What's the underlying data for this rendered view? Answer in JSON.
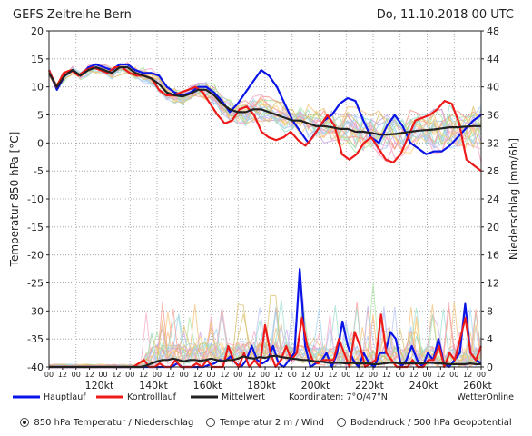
{
  "header": {
    "title": "GEFS Zeitreihe Bern",
    "date": "Do, 11.10.2018 00 UTC"
  },
  "chart_data": {
    "type": "line",
    "title": "GEFS Zeitreihe Bern",
    "ylabel_left": "Temperatur 850 hPa [°C]",
    "ylabel_right": "Niederschlag [mm/6h]",
    "ylim_left": [
      -40,
      20
    ],
    "ylim_right": [
      0,
      48
    ],
    "yticks_left": [
      20,
      15,
      10,
      5,
      0,
      -5,
      -10,
      -15,
      -20,
      -25,
      -30,
      -35,
      -40
    ],
    "yticks_right": [
      48,
      44,
      40,
      36,
      32,
      28,
      24,
      20,
      16,
      12,
      8,
      4,
      0
    ],
    "x_hours": [
      0,
      384
    ],
    "x_step_hours": 6,
    "x_tick_labels": [
      "00",
      "12",
      "00",
      "12",
      "00",
      "12",
      "00",
      "12",
      "00",
      "12",
      "00",
      "12",
      "00",
      "12",
      "00",
      "12",
      "00",
      "12",
      "00",
      "12",
      "00",
      "12",
      "00",
      "12",
      "00",
      "12",
      "00",
      "12",
      "00",
      "12",
      "00",
      "12",
      "00"
    ],
    "x_kt_labels": [
      "120kt",
      "140kt",
      "160kt",
      "180kt",
      "200kt",
      "220kt",
      "240kt",
      "260kt"
    ],
    "grid": true,
    "series": [
      {
        "name": "Hauptlauf",
        "color": "#0a14e6",
        "temperature": [
          13,
          9.5,
          12,
          13,
          12,
          13.5,
          14,
          13.5,
          13,
          14,
          14,
          13,
          12.5,
          12.5,
          12,
          10,
          9,
          8.5,
          9,
          10,
          10,
          9,
          7.5,
          5.5,
          7,
          9,
          11,
          13,
          12,
          10,
          7,
          4,
          2,
          0,
          2,
          4,
          5,
          7,
          8,
          7.5,
          4,
          1,
          0,
          3,
          5,
          3,
          0,
          -1,
          -2,
          -1.5,
          -1.5,
          -0.5,
          1,
          2.5,
          4,
          5
        ],
        "precip": [
          0,
          0,
          0,
          0,
          0,
          0,
          0,
          0,
          0,
          0,
          0,
          0,
          0,
          0,
          0,
          0,
          0,
          0,
          0,
          0,
          0,
          0,
          0,
          0,
          0.5,
          0,
          0,
          0,
          0,
          0,
          0.3,
          0.5,
          1,
          0.8,
          1.5,
          0.5,
          0,
          1,
          3,
          1,
          0.5,
          1,
          3,
          0.5,
          0,
          1,
          2,
          14,
          3,
          0,
          0.5,
          0.8,
          2,
          0,
          2,
          6.5,
          3,
          1,
          0,
          2,
          0.5,
          0,
          2,
          2,
          5,
          4,
          0,
          1,
          3,
          1,
          0,
          2,
          1,
          4,
          0.5,
          0,
          1,
          2,
          9,
          2,
          1,
          0.5
        ],
        "precip_note": "precip is sampled every 4.8 h as drawn"
      },
      {
        "name": "Kontrolllauf",
        "color": "#ee1a1a",
        "temperature": [
          13,
          10,
          12.5,
          13,
          12,
          13,
          13.5,
          13,
          12.5,
          13.5,
          13.5,
          12.5,
          12,
          12,
          11.5,
          9.5,
          8.5,
          8.5,
          9,
          9.5,
          10,
          9,
          7,
          5,
          3.5,
          4,
          6,
          6.5,
          5,
          2,
          1,
          0.5,
          1,
          2,
          0.5,
          -0.5,
          1,
          3,
          5,
          3,
          -2,
          -3,
          -2,
          0,
          1,
          -1,
          -3,
          -3.5,
          -2,
          1,
          4,
          4.5,
          5,
          6,
          7.5,
          7,
          3.5,
          -3,
          -4,
          -5
        ],
        "precip": [
          0,
          0,
          0,
          0,
          0,
          0,
          0,
          0,
          0,
          0,
          0,
          0,
          0,
          0,
          0,
          0,
          0,
          0.5,
          1,
          0,
          0,
          0.5,
          0,
          0,
          1,
          0,
          0,
          0,
          0.5,
          0,
          1,
          0,
          0,
          0,
          3,
          1,
          0,
          2,
          0,
          1,
          0,
          6,
          2,
          0,
          1,
          3,
          1,
          2,
          7,
          3,
          1,
          0.5,
          1,
          1,
          1,
          4,
          2,
          0,
          5,
          3,
          0,
          0.5,
          1,
          7.5,
          2,
          1,
          0,
          0,
          0,
          1,
          0,
          0,
          1,
          1,
          3,
          0,
          2,
          1,
          4,
          7,
          2,
          1,
          3
        ],
        "precip_note": "precip is sampled every 4.8 h as drawn"
      },
      {
        "name": "Mittelwert",
        "color": "#222222",
        "temperature": [
          12.5,
          10,
          12,
          13,
          12,
          13,
          13.5,
          13,
          12.5,
          13.5,
          13.5,
          12.5,
          12,
          11.5,
          10.5,
          9,
          8.5,
          8.3,
          8.8,
          9.5,
          9.5,
          8.5,
          7,
          6,
          5.5,
          5.5,
          6,
          6,
          5.5,
          5,
          4.5,
          4,
          4,
          3.5,
          3,
          3,
          2.8,
          2.5,
          2.5,
          2,
          2,
          1.8,
          1.5,
          1.5,
          1.6,
          1.8,
          2,
          2.2,
          2.3,
          2.4,
          2.6,
          2.8,
          2.8,
          2.9,
          3,
          3
        ],
        "precip": [
          0,
          0,
          0,
          0,
          0,
          0,
          0,
          0,
          0,
          0,
          0,
          0,
          0,
          0,
          0,
          0,
          0,
          0,
          0.2,
          0.5,
          0.8,
          1,
          1,
          1.2,
          1,
          0.8,
          1,
          1,
          0.9,
          1,
          1.2,
          1,
          0.8,
          1,
          1,
          1.2,
          1.5,
          1.3,
          1.2,
          1.4,
          1.3,
          1.5,
          1.6,
          1.4,
          1.3,
          1.2,
          1.1,
          1,
          1,
          0.8,
          0.8,
          0.7,
          0.6,
          0.6,
          0.6,
          0.5,
          0.6,
          0.5,
          0.5,
          0.5,
          0.4,
          0.4,
          0.5,
          0.6,
          0.6,
          0.5,
          0.5,
          0.5,
          0.5,
          0.5,
          0.6,
          0.6,
          0.5,
          0.5,
          0.4,
          0.4,
          0.4,
          0.4,
          0.5,
          0.4,
          0.4
        ]
      }
    ]
  },
  "legend": {
    "items": [
      "Hauptlauf",
      "Kontrolllauf",
      "Mittelwert"
    ],
    "coords": "Koordinaten: 7°O/47°N",
    "source": "WetterOnline"
  },
  "radio_options": [
    {
      "label": "850 hPa Temperatur / Niederschlag",
      "selected": true
    },
    {
      "label": "Temperatur 2 m / Wind",
      "selected": false
    },
    {
      "label": "Bodendruck / 500 hPa Geopotential",
      "selected": false
    }
  ],
  "colors": {
    "hauptlauf": "#0a14e6",
    "kontrolllauf": "#ee1a1a",
    "mittelwert": "#222222",
    "ensemble": [
      "#f4c27a",
      "#c9a4e8",
      "#9fd3f2",
      "#a8e6a1",
      "#f7a9c7",
      "#ffd27f",
      "#b9c4f5",
      "#f59a8f",
      "#9ee0d1",
      "#d8c26b"
    ]
  }
}
